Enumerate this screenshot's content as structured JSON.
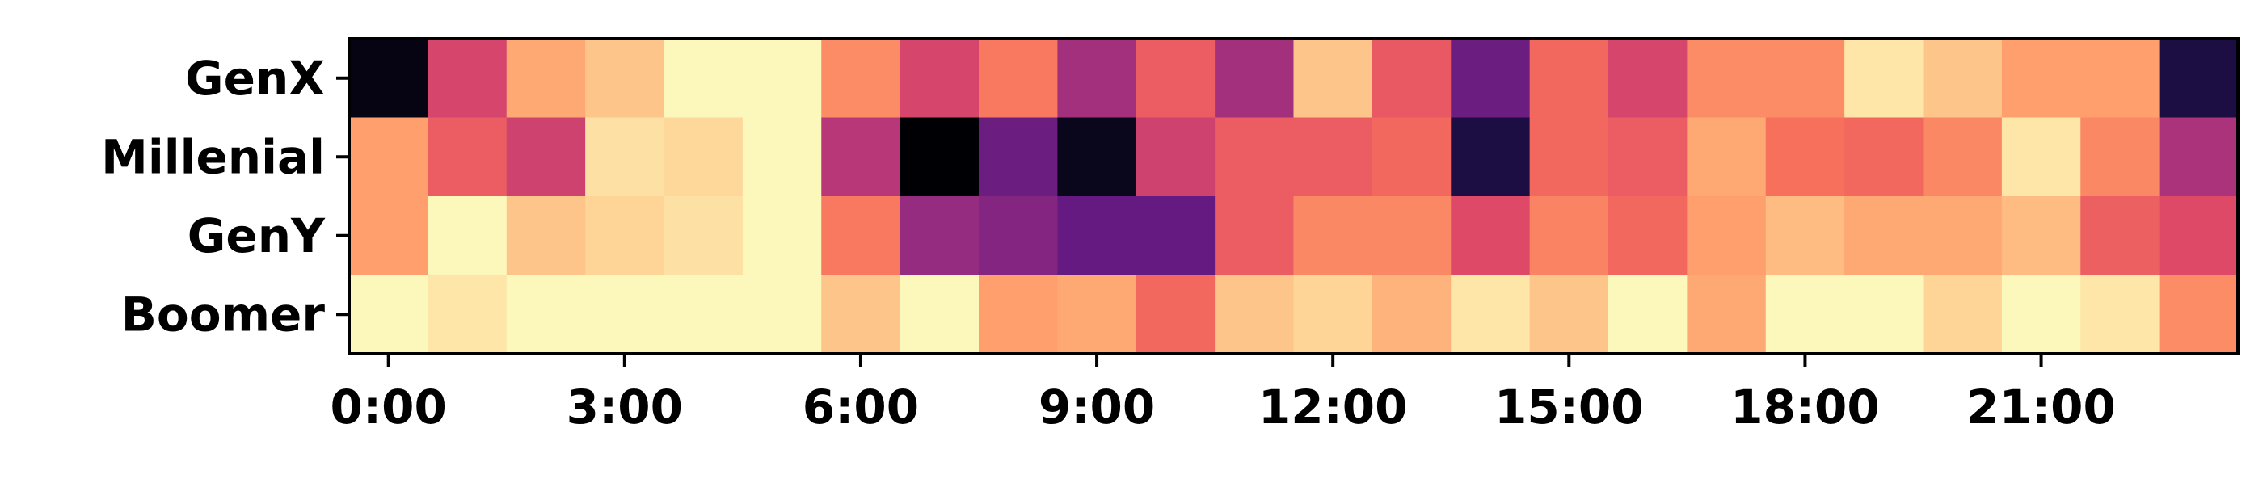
{
  "chart_data": {
    "type": "heatmap",
    "title": "",
    "xlabel": "",
    "ylabel": "",
    "colormap": "magma",
    "value_range": [
      0,
      1
    ],
    "grid": false,
    "legend": "none",
    "x_hours": [
      0,
      1,
      2,
      3,
      4,
      5,
      6,
      7,
      8,
      9,
      10,
      11,
      12,
      13,
      14,
      15,
      16,
      17,
      18,
      19,
      20,
      21,
      22,
      23
    ],
    "x_tick_positions": [
      0,
      3,
      6,
      9,
      12,
      15,
      18,
      21
    ],
    "x_tick_labels": [
      "0:00",
      "3:00",
      "6:00",
      "9:00",
      "12:00",
      "15:00",
      "18:00",
      "21:00"
    ],
    "y_labels": [
      "GenX",
      "Millenial",
      "GenY",
      "Boomer"
    ],
    "values": [
      [
        0.03,
        0.58,
        0.82,
        0.88,
        0.99,
        0.99,
        0.76,
        0.58,
        0.72,
        0.45,
        0.65,
        0.45,
        0.88,
        0.64,
        0.32,
        0.68,
        0.58,
        0.76,
        0.76,
        0.95,
        0.88,
        0.8,
        0.8,
        0.12
      ],
      [
        0.8,
        0.65,
        0.56,
        0.94,
        0.92,
        0.99,
        0.5,
        0.0,
        0.32,
        0.05,
        0.56,
        0.65,
        0.65,
        0.68,
        0.12,
        0.68,
        0.65,
        0.82,
        0.7,
        0.68,
        0.75,
        0.95,
        0.75,
        0.47
      ],
      [
        0.8,
        0.99,
        0.88,
        0.91,
        0.94,
        0.99,
        0.72,
        0.42,
        0.38,
        0.3,
        0.3,
        0.65,
        0.75,
        0.75,
        0.6,
        0.74,
        0.68,
        0.8,
        0.86,
        0.82,
        0.82,
        0.86,
        0.66,
        0.6
      ],
      [
        0.99,
        0.95,
        0.99,
        0.99,
        0.99,
        0.99,
        0.88,
        0.99,
        0.8,
        0.82,
        0.68,
        0.88,
        0.91,
        0.84,
        0.95,
        0.88,
        0.99,
        0.82,
        0.99,
        0.99,
        0.91,
        0.99,
        0.95,
        0.76
      ]
    ]
  }
}
